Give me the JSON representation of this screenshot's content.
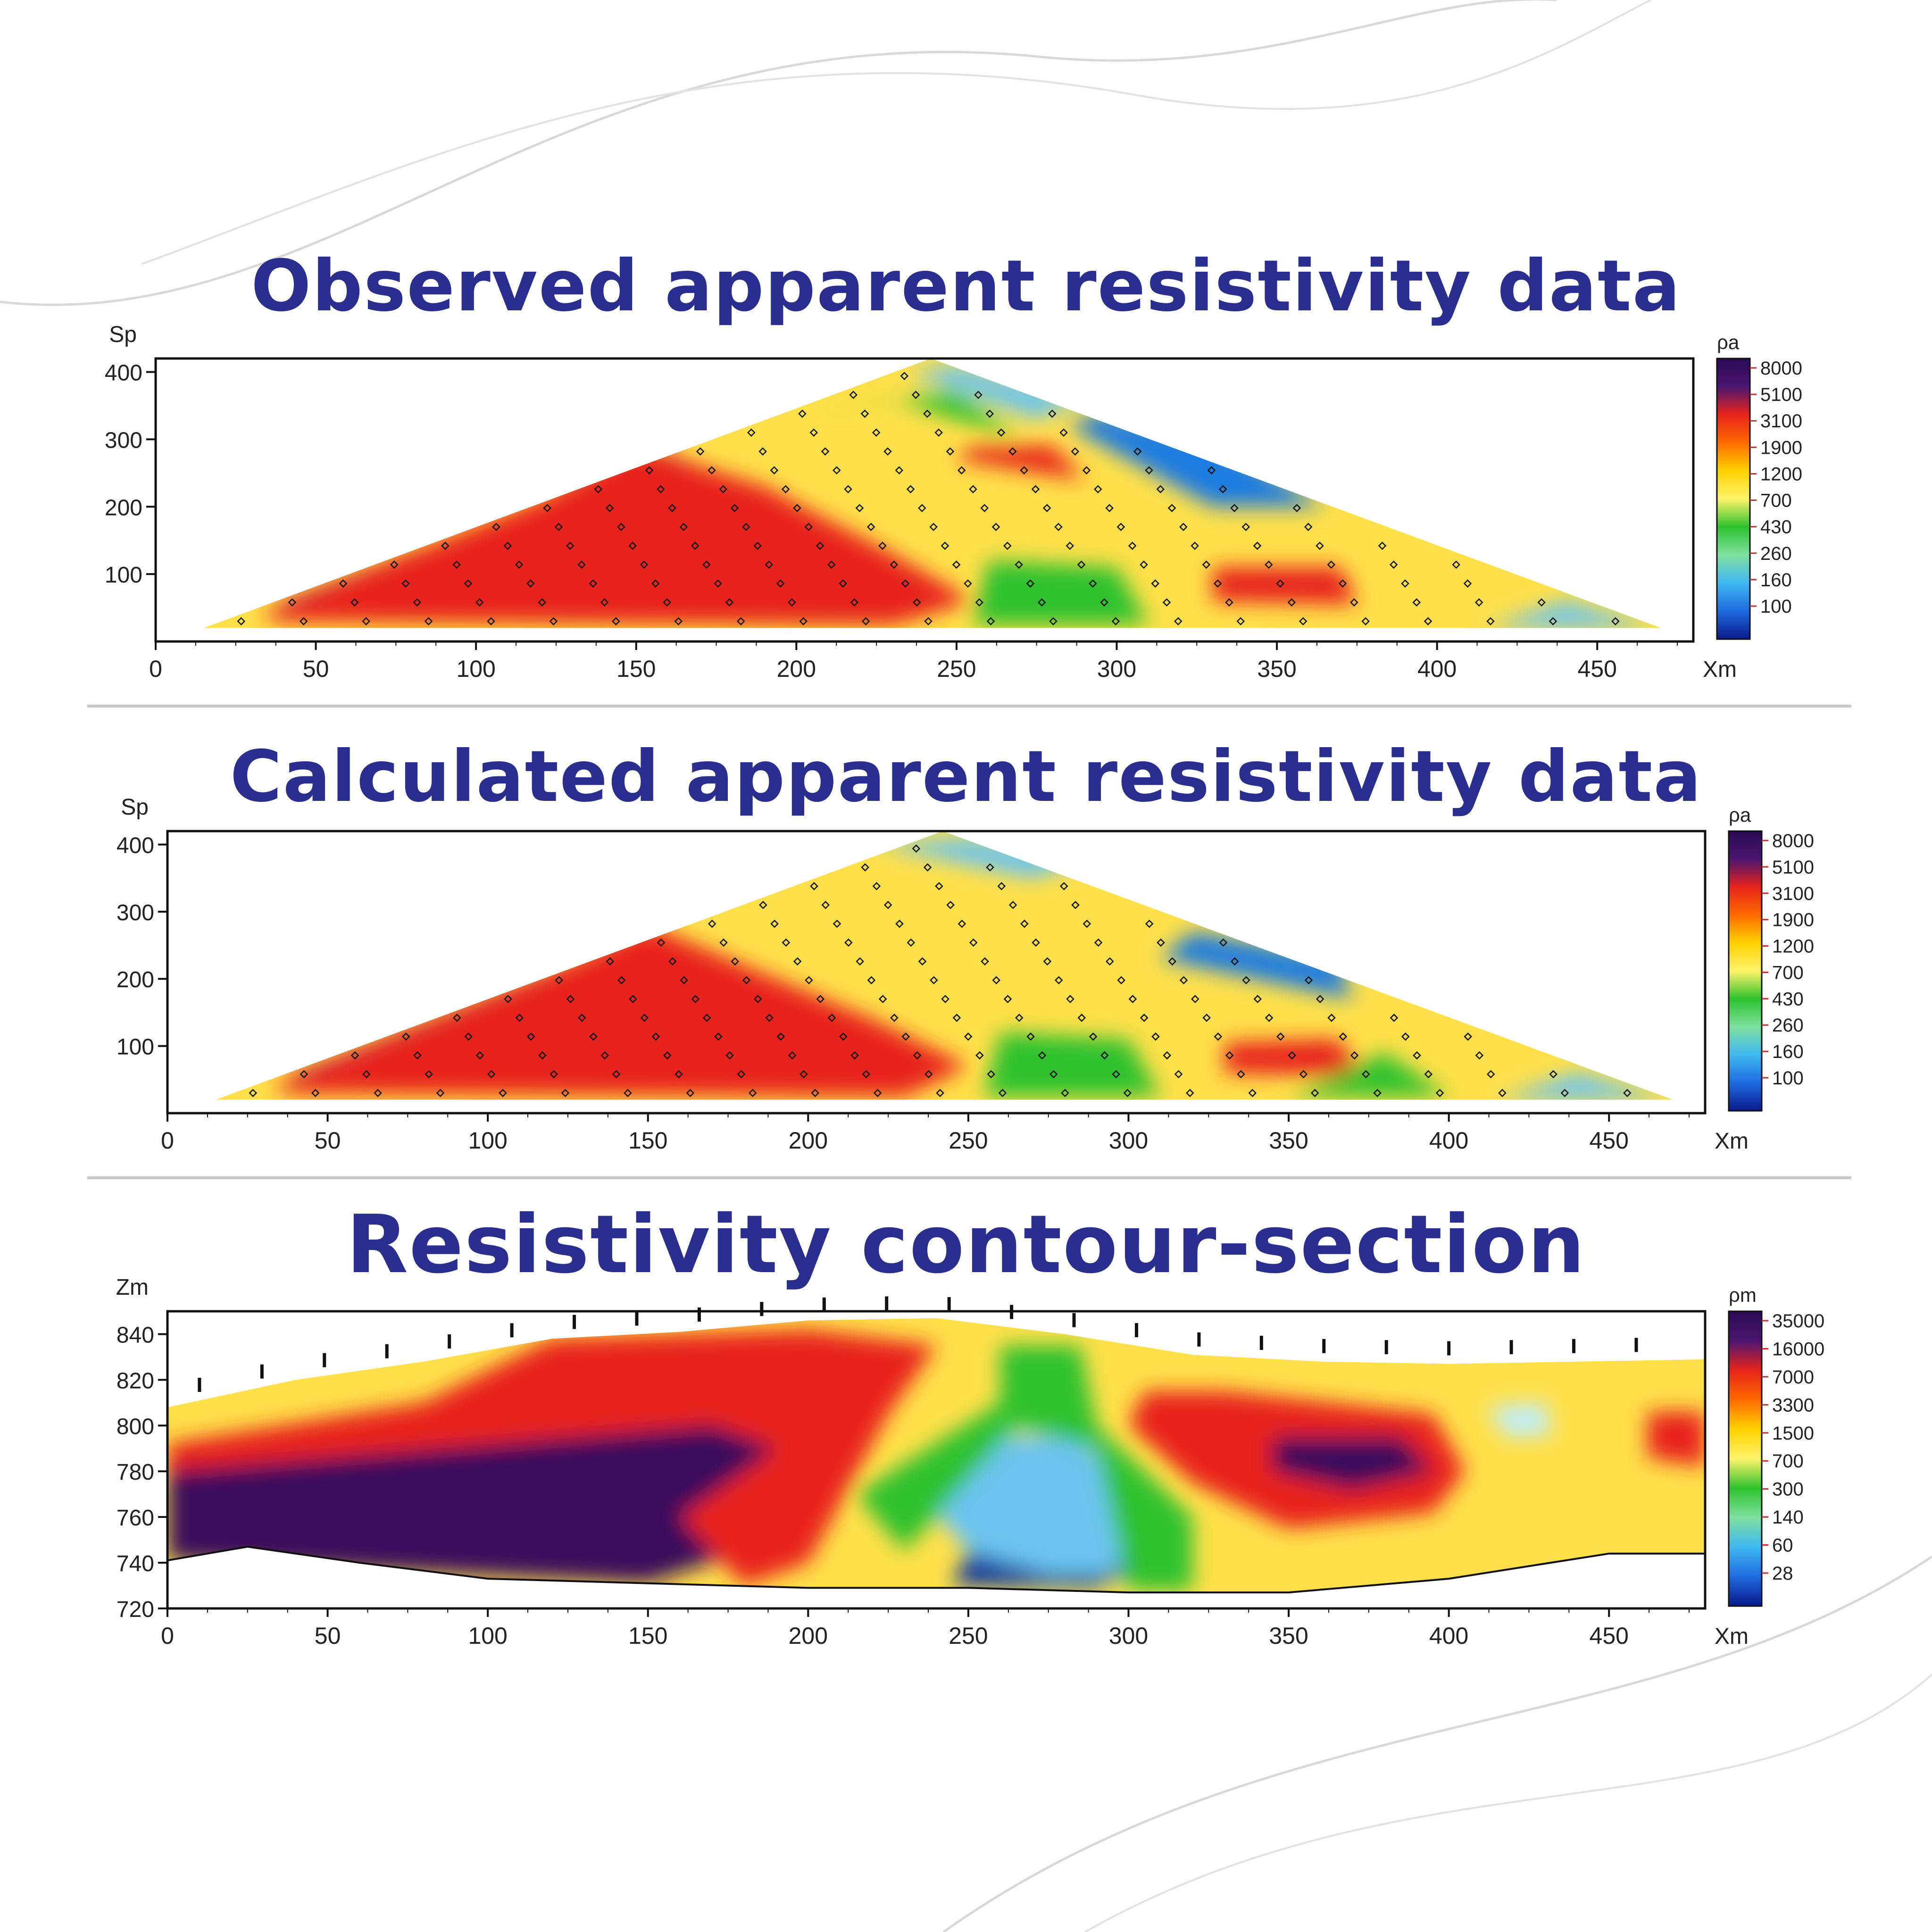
{
  "chart_data": [
    {
      "type": "heatmap",
      "title": "Observed apparent resistivity data",
      "ylabel": "Sp",
      "xlabel": "Xm",
      "colorbar_label": "ρa",
      "xlim": [
        0,
        480
      ],
      "ylim": [
        420,
        0
      ],
      "x_ticks": [
        "0",
        "50",
        "100",
        "150",
        "200",
        "250",
        "300",
        "350",
        "400",
        "450"
      ],
      "y_ticks": [
        "100",
        "200",
        "300",
        "400"
      ],
      "colorbar_ticks": [
        "8000",
        "5100",
        "3100",
        "1900",
        "1200",
        "700",
        "430",
        "260",
        "160",
        "100"
      ],
      "pseudosection": {
        "outline": [
          [
            15,
            20
          ],
          [
            470,
            20
          ],
          [
            242,
            420
          ]
        ],
        "anomalies": [
          {
            "zone": "very high",
            "color": "#3b0f5c",
            "poly": [
              [
                40,
                35
              ],
              [
                190,
                35
              ],
              [
                220,
                110
              ],
              [
                190,
                210
              ],
              [
                160,
                280
              ],
              [
                40,
                60
              ]
            ]
          },
          {
            "zone": "high",
            "color": "#e8231c",
            "poly": [
              [
                35,
                30
              ],
              [
                230,
                25
              ],
              [
                255,
                60
              ],
              [
                230,
                130
              ],
              [
                190,
                230
              ],
              [
                150,
                290
              ],
              [
                120,
                210
              ],
              [
                35,
                45
              ]
            ]
          },
          {
            "zone": "high",
            "color": "#e8231c",
            "poly": [
              [
                330,
                60
              ],
              [
                375,
                55
              ],
              [
                370,
                110
              ],
              [
                330,
                110
              ]
            ]
          },
          {
            "zone": "high",
            "color": "#e8231c",
            "poly": [
              [
                250,
                270
              ],
              [
                290,
                240
              ],
              [
                280,
                290
              ],
              [
                255,
                290
              ]
            ]
          },
          {
            "zone": "low",
            "color": "#1e7be0",
            "poly": [
              [
                285,
                320
              ],
              [
                330,
                200
              ],
              [
                365,
                200
              ],
              [
                330,
                300
              ],
              [
                295,
                340
              ]
            ]
          },
          {
            "zone": "low",
            "color": "#6cc4f0",
            "poly": [
              [
                235,
                400
              ],
              [
                275,
                330
              ],
              [
                290,
                360
              ],
              [
                250,
                410
              ]
            ]
          },
          {
            "zone": "low",
            "color": "#6cc4f0",
            "poly": [
              [
                415,
                20
              ],
              [
                470,
                20
              ],
              [
                440,
                60
              ]
            ]
          },
          {
            "zone": "medium",
            "color": "#2ec22e",
            "poly": [
              [
                255,
                25
              ],
              [
                310,
                25
              ],
              [
                300,
                110
              ],
              [
                260,
                120
              ]
            ]
          },
          {
            "zone": "medium",
            "color": "#2ec22e",
            "poly": [
              [
                200,
                340
              ],
              [
                250,
                370
              ],
              [
                270,
                300
              ],
              [
                230,
                360
              ]
            ]
          }
        ]
      }
    },
    {
      "type": "heatmap",
      "title": "Calculated apparent resistivity data",
      "ylabel": "Sp",
      "xlabel": "Xm",
      "colorbar_label": "ρa",
      "xlim": [
        0,
        480
      ],
      "ylim": [
        420,
        0
      ],
      "x_ticks": [
        "0",
        "50",
        "100",
        "150",
        "200",
        "250",
        "300",
        "350",
        "400",
        "450"
      ],
      "y_ticks": [
        "100",
        "200",
        "300",
        "400"
      ],
      "colorbar_ticks": [
        "8000",
        "5100",
        "3100",
        "1900",
        "1200",
        "700",
        "430",
        "260",
        "160",
        "100"
      ],
      "pseudosection": {
        "outline": [
          [
            15,
            20
          ],
          [
            470,
            20
          ],
          [
            242,
            420
          ]
        ],
        "anomalies": [
          {
            "zone": "very high",
            "color": "#3b0f5c",
            "poly": [
              [
                40,
                35
              ],
              [
                180,
                35
              ],
              [
                210,
                110
              ],
              [
                180,
                200
              ],
              [
                150,
                270
              ],
              [
                40,
                60
              ]
            ]
          },
          {
            "zone": "high",
            "color": "#e8231c",
            "poly": [
              [
                35,
                30
              ],
              [
                230,
                25
              ],
              [
                250,
                70
              ],
              [
                220,
                140
              ],
              [
                170,
                240
              ],
              [
                150,
                280
              ],
              [
                120,
                210
              ],
              [
                35,
                45
              ]
            ]
          },
          {
            "zone": "high",
            "color": "#e8231c",
            "poly": [
              [
                330,
                60
              ],
              [
                375,
                55
              ],
              [
                365,
                110
              ],
              [
                330,
                105
              ]
            ]
          },
          {
            "zone": "low",
            "color": "#1e7be0",
            "poly": [
              [
                310,
                230
              ],
              [
                370,
                170
              ],
              [
                365,
                230
              ],
              [
                320,
                270
              ]
            ]
          },
          {
            "zone": "low",
            "color": "#6cc4f0",
            "poly": [
              [
                220,
                400
              ],
              [
                270,
                350
              ],
              [
                290,
                380
              ],
              [
                250,
                410
              ]
            ]
          },
          {
            "zone": "low",
            "color": "#6cc4f0",
            "poly": [
              [
                415,
                20
              ],
              [
                470,
                20
              ],
              [
                440,
                60
              ]
            ]
          },
          {
            "zone": "medium",
            "color": "#2ec22e",
            "poly": [
              [
                255,
                25
              ],
              [
                310,
                25
              ],
              [
                300,
                110
              ],
              [
                260,
                120
              ]
            ]
          },
          {
            "zone": "medium",
            "color": "#2ec22e",
            "poly": [
              [
                350,
                25
              ],
              [
                400,
                25
              ],
              [
                380,
                90
              ]
            ]
          }
        ]
      }
    },
    {
      "type": "heatmap",
      "title": "Resistivity contour-section",
      "ylabel": "Zm",
      "xlabel": "Xm",
      "colorbar_label": "ρm",
      "xlim": [
        0,
        480
      ],
      "ylim": [
        720,
        850
      ],
      "x_ticks": [
        "0",
        "50",
        "100",
        "150",
        "200",
        "250",
        "300",
        "350",
        "400",
        "450"
      ],
      "y_ticks": [
        "840",
        "820",
        "800",
        "780",
        "760",
        "740",
        "720"
      ],
      "colorbar_ticks": [
        "35000",
        "16000",
        "7000",
        "3300",
        "1500",
        "700",
        "300",
        "140",
        "60",
        "28"
      ],
      "section": {
        "top_profile": [
          [
            0,
            808
          ],
          [
            40,
            820
          ],
          [
            80,
            828
          ],
          [
            120,
            838
          ],
          [
            160,
            841
          ],
          [
            200,
            846
          ],
          [
            240,
            847
          ],
          [
            280,
            840
          ],
          [
            320,
            831
          ],
          [
            360,
            828
          ],
          [
            400,
            827
          ],
          [
            440,
            828
          ],
          [
            480,
            829
          ]
        ],
        "bottom_profile": [
          [
            0,
            741
          ],
          [
            25,
            747
          ],
          [
            60,
            740
          ],
          [
            100,
            733
          ],
          [
            150,
            731
          ],
          [
            200,
            729
          ],
          [
            250,
            729
          ],
          [
            300,
            727
          ],
          [
            350,
            727
          ],
          [
            400,
            733
          ],
          [
            450,
            744
          ],
          [
            480,
            744
          ]
        ],
        "bodies": [
          {
            "zone": "very high",
            "color": "#3b0f5c",
            "poly": [
              [
                0,
                780
              ],
              [
                60,
                790
              ],
              [
                130,
                800
              ],
              [
                180,
                800
              ],
              [
                200,
                785
              ],
              [
                180,
                745
              ],
              [
                150,
                731
              ],
              [
                0,
                741
              ]
            ]
          },
          {
            "zone": "high",
            "color": "#e8231c",
            "poly": [
              [
                0,
                792
              ],
              [
                80,
                810
              ],
              [
                120,
                838
              ],
              [
                200,
                842
              ],
              [
                240,
                835
              ],
              [
                225,
                805
              ],
              [
                200,
                740
              ],
              [
                180,
                730
              ],
              [
                160,
                760
              ],
              [
                190,
                790
              ],
              [
                170,
                800
              ],
              [
                0,
                780
              ]
            ]
          },
          {
            "zone": "high",
            "color": "#e8231c",
            "poly": [
              [
                305,
                815
              ],
              [
                330,
                815
              ],
              [
                395,
                805
              ],
              [
                405,
                780
              ],
              [
                395,
                762
              ],
              [
                350,
                755
              ],
              [
                320,
                775
              ],
              [
                300,
                800
              ]
            ]
          },
          {
            "zone": "very high",
            "color": "#3b0f5c",
            "poly": [
              [
                345,
                795
              ],
              [
                385,
                795
              ],
              [
                395,
                780
              ],
              [
                370,
                772
              ],
              [
                345,
                780
              ]
            ]
          },
          {
            "zone": "high",
            "color": "#e8231c",
            "poly": [
              [
                462,
                806
              ],
              [
                480,
                806
              ],
              [
                480,
                782
              ],
              [
                462,
                786
              ]
            ]
          },
          {
            "zone": "low",
            "color": "#0a3aa0",
            "poly": [
              [
                245,
                730
              ],
              [
                260,
                775
              ],
              [
                285,
                775
              ],
              [
                305,
                740
              ],
              [
                290,
                729
              ]
            ]
          },
          {
            "zone": "low",
            "color": "#6cc4f0",
            "poly": [
              [
                235,
                770
              ],
              [
                260,
                795
              ],
              [
                285,
                795
              ],
              [
                305,
                760
              ],
              [
                295,
                735
              ],
              [
                275,
                735
              ],
              [
                250,
                745
              ]
            ]
          },
          {
            "zone": "medium",
            "color": "#2ec22e",
            "poly": [
              [
                215,
                770
              ],
              [
                260,
                810
              ],
              [
                260,
                835
              ],
              [
                285,
                835
              ],
              [
                290,
                800
              ],
              [
                320,
                760
              ],
              [
                320,
                728
              ],
              [
                300,
                728
              ],
              [
                290,
                790
              ],
              [
                265,
                800
              ],
              [
                230,
                745
              ]
            ]
          },
          {
            "zone": "low",
            "color": "#bfeefc",
            "poly": [
              [
                412,
                808
              ],
              [
                430,
                810
              ],
              [
                432,
                796
              ],
              [
                418,
                795
              ]
            ]
          }
        ]
      }
    }
  ]
}
